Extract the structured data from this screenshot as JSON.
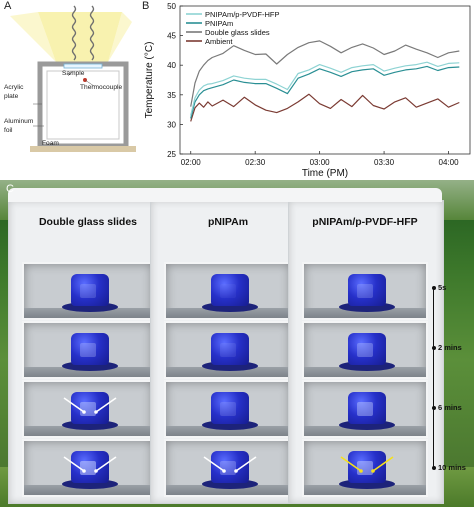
{
  "panels": {
    "a": "A",
    "b": "B",
    "c": "C"
  },
  "panel_a": {
    "labels": {
      "sample": "Sample",
      "thermocouple": "Thermocouple",
      "acrylic": "Acrylic",
      "plate": "plate",
      "aluminum": "Aluminum",
      "foil": "foil",
      "foam": "Foam"
    },
    "colors": {
      "light": "#f6ee9c",
      "frame": "#9a9a9a",
      "base": "#d9c9a6",
      "thermocouple": "#c0392b"
    }
  },
  "chart_data": {
    "type": "line",
    "xlabel": "Time (PM)",
    "ylabel": "Temperature (°C)",
    "xticks": [
      "02:00",
      "02:30",
      "03:00",
      "03:30",
      "04:00"
    ],
    "xlim_minutes": [
      -5,
      130
    ],
    "ylim": [
      25,
      50
    ],
    "yticks": [
      25,
      30,
      35,
      40,
      45,
      50
    ],
    "legend": "top-left",
    "grid": false,
    "series": [
      {
        "name": "PNIPAm/p-PVDF-HFP",
        "color": "#8ed3d3",
        "x": [
          0,
          2,
          4,
          6,
          8,
          10,
          15,
          20,
          25,
          30,
          35,
          40,
          45,
          50,
          55,
          60,
          65,
          70,
          75,
          80,
          85,
          90,
          95,
          100,
          105,
          110,
          115,
          120,
          125
        ],
        "y": [
          31.5,
          34.5,
          35.8,
          36.5,
          36.8,
          36.9,
          37.4,
          38.2,
          37.8,
          37.6,
          37.6,
          36.8,
          35.9,
          38.6,
          39.2,
          40.1,
          39.5,
          38.8,
          39.6,
          39.9,
          40.1,
          39.0,
          39.5,
          39.9,
          40.1,
          40.5,
          39.8,
          40.3,
          40.4
        ]
      },
      {
        "name": "PNIPAm",
        "color": "#2a8f94",
        "x": [
          0,
          2,
          4,
          6,
          8,
          10,
          15,
          20,
          25,
          30,
          35,
          40,
          45,
          50,
          55,
          60,
          65,
          70,
          75,
          80,
          85,
          90,
          95,
          100,
          105,
          110,
          115,
          120,
          125
        ],
        "y": [
          31.0,
          33.8,
          35.0,
          35.7,
          36.0,
          36.2,
          36.7,
          37.5,
          37.1,
          36.9,
          36.9,
          36.1,
          35.2,
          37.8,
          38.5,
          39.4,
          38.8,
          38.1,
          38.9,
          39.2,
          39.4,
          38.3,
          38.8,
          39.2,
          39.4,
          39.8,
          39.1,
          39.6,
          39.7
        ]
      },
      {
        "name": "Double glass slides",
        "color": "#7a7a7a",
        "x": [
          0,
          2,
          4,
          6,
          8,
          10,
          15,
          20,
          25,
          30,
          35,
          40,
          45,
          50,
          55,
          60,
          65,
          70,
          75,
          80,
          85,
          90,
          95,
          100,
          105,
          110,
          115,
          120,
          125
        ],
        "y": [
          33.0,
          37.0,
          39.0,
          40.0,
          40.8,
          41.3,
          42.0,
          43.3,
          42.5,
          41.8,
          41.9,
          40.2,
          41.8,
          43.0,
          43.8,
          44.1,
          43.2,
          42.1,
          43.0,
          43.6,
          42.9,
          41.8,
          42.4,
          43.4,
          42.7,
          42.1,
          41.3,
          42.1,
          42.4
        ]
      },
      {
        "name": "Ambient",
        "color": "#7b3b33",
        "x": [
          0,
          2,
          4,
          6,
          8,
          10,
          15,
          20,
          25,
          30,
          35,
          40,
          45,
          50,
          55,
          60,
          65,
          70,
          75,
          80,
          85,
          90,
          95,
          100,
          105,
          110,
          115,
          120,
          125
        ],
        "y": [
          30.5,
          32.8,
          33.6,
          32.9,
          33.8,
          33.1,
          34.1,
          33.0,
          34.6,
          33.3,
          32.4,
          32.0,
          32.7,
          33.8,
          35.1,
          33.5,
          32.7,
          34.2,
          33.0,
          34.9,
          33.2,
          32.6,
          33.8,
          34.5,
          32.9,
          33.6,
          34.3,
          32.9,
          33.7
        ]
      }
    ]
  },
  "panel_c": {
    "columns": [
      "Double glass slides",
      "pNIPAm",
      "pNIPAm/p-PVDF-HFP"
    ],
    "times": [
      "5s",
      "2 mins",
      "6 mins",
      "10 mins"
    ],
    "frost_fraction": [
      [
        0.35,
        0.5,
        0.75,
        0.9
      ],
      [
        0.1,
        0.2,
        0.3,
        0.5
      ],
      [
        0.4,
        0.55,
        0.7,
        0.8
      ]
    ],
    "arrow_colors": [
      "#ffffff",
      "#ffffff",
      "#f5e11a"
    ]
  }
}
